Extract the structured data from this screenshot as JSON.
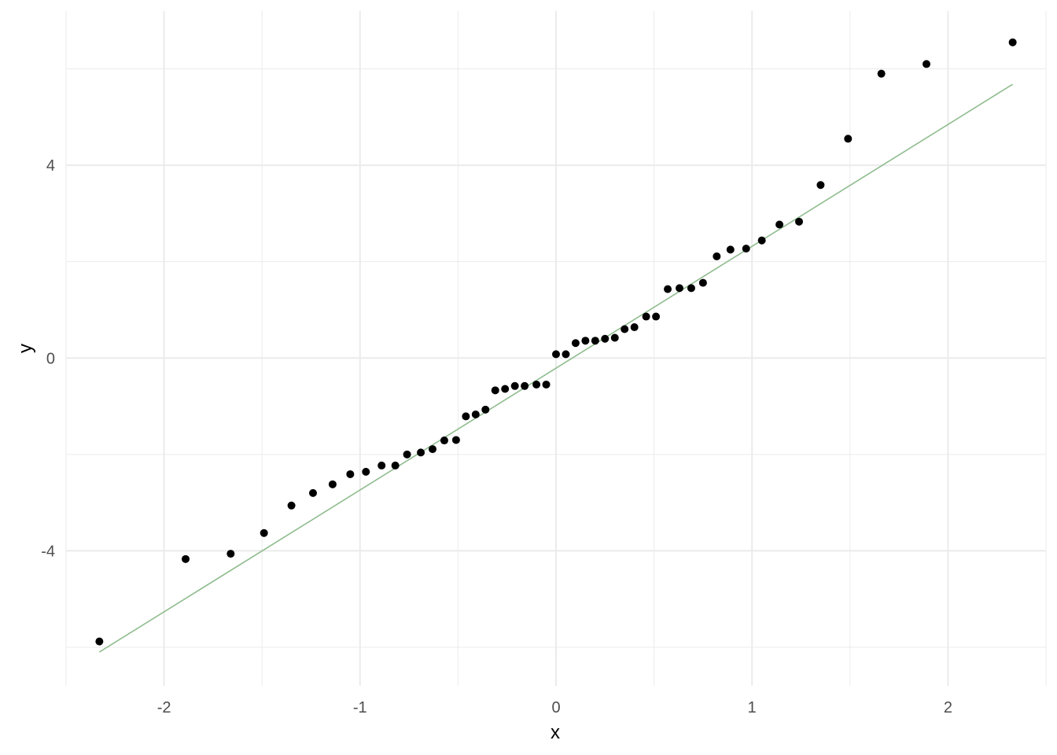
{
  "chart_data": {
    "type": "scatter",
    "title": "",
    "xlabel": "x",
    "ylabel": "y",
    "xlim": [
      -2.5,
      2.5
    ],
    "ylim": [
      -6.8,
      7.2
    ],
    "x_ticks": [
      -2,
      -1,
      0,
      1,
      2
    ],
    "x_tick_labels": [
      "-2",
      "-1",
      "0",
      "1",
      "2"
    ],
    "y_ticks": [
      -4,
      0,
      4
    ],
    "y_tick_labels": [
      "-4",
      "0",
      "4"
    ],
    "grid": true,
    "legend": "none",
    "colors": {
      "points": "#000000",
      "line": "#8fbc8f",
      "grid": "#ebebeb",
      "axis_text": "#4d4d4d"
    },
    "series": [
      {
        "kind": "points",
        "x": [
          -2.33,
          -1.89,
          -1.66,
          -1.49,
          -1.35,
          -1.24,
          -1.14,
          -1.05,
          -0.97,
          -0.89,
          -0.82,
          -0.76,
          -0.69,
          -0.63,
          -0.57,
          -0.51,
          -0.46,
          -0.41,
          -0.36,
          -0.31,
          -0.26,
          -0.21,
          -0.16,
          -0.1,
          -0.05,
          0.0,
          0.05,
          0.1,
          0.15,
          0.2,
          0.25,
          0.3,
          0.35,
          0.4,
          0.46,
          0.51,
          0.57,
          0.63,
          0.69,
          0.75,
          0.82,
          0.89,
          0.97,
          1.05,
          1.14,
          1.24,
          1.35,
          1.49,
          1.66,
          1.89,
          2.33
        ],
        "y": [
          -5.88,
          -4.17,
          -4.06,
          -3.63,
          -3.06,
          -2.8,
          -2.62,
          -2.41,
          -2.36,
          -2.23,
          -2.23,
          -2.0,
          -1.96,
          -1.89,
          -1.71,
          -1.7,
          -1.21,
          -1.17,
          -1.07,
          -0.67,
          -0.64,
          -0.58,
          -0.58,
          -0.55,
          -0.55,
          0.08,
          0.08,
          0.31,
          0.36,
          0.36,
          0.4,
          0.42,
          0.6,
          0.64,
          0.86,
          0.86,
          1.43,
          1.45,
          1.45,
          1.56,
          2.11,
          2.25,
          2.27,
          2.44,
          2.77,
          2.83,
          3.59,
          4.55,
          5.9,
          6.1,
          6.55
        ]
      },
      {
        "kind": "line",
        "x": [
          -2.33,
          2.33
        ],
        "y": [
          -6.1,
          5.68
        ]
      }
    ]
  }
}
